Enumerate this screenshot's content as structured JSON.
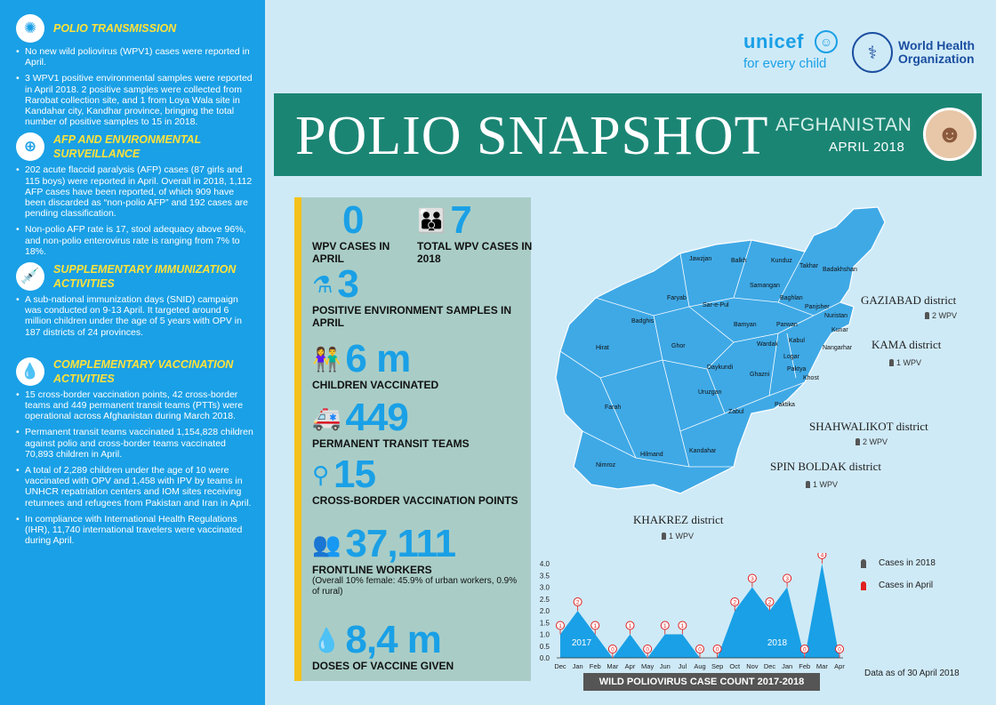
{
  "sidebar": {
    "sections": [
      {
        "title": "POLIO TRANSMISSION",
        "icon": "virus-icon",
        "bullets": [
          "No new wild poliovirus (WPV1) cases were reported in April.",
          "3 WPV1 positive environmental samples were reported in April 2018. 2 positive samples were collected from Rarobat collection site, and 1 from Loya Wala site in Kandahar city, Kandhar province, bringing the total number of positive samples to 15 in 2018."
        ]
      },
      {
        "title": "AFP AND ENVIRONMENTAL SURVEILLANCE",
        "icon": "surveillance-icon",
        "bullets": [
          "202 acute flaccid paralysis (AFP) cases (87 girls and 115 boys) were reported in April. Overall in 2018, 1,112 AFP cases have been reported, of which 909 have been discarded as “non-polio AFP” and 192 cases are pending classification.",
          "Non-polio AFP rate is 17, stool adequacy above 96%, and non-polio enterovirus rate is ranging from 7% to 18%."
        ]
      },
      {
        "title": "SUPPLEMENTARY IMMUNIZATION ACTIVITIES",
        "icon": "vaccine-drop-icon",
        "bullets": [
          "A sub-national immunization days (SNID) campaign was conducted on 9-13 April. It targeted around 6 million children under the age of 5 years with OPV in 187 districts of 24 provinces."
        ]
      },
      {
        "title": "COMPLEMENTARY VACCINATION ACTIVITIES",
        "icon": "drop-icon",
        "bullets": [
          "15 cross-border vaccination points, 42 cross-border teams and 449 permanent transit teams (PTTs) were operational across Afghanistan during March 2018.",
          "Permanent transit teams vaccinated 1,154,828 children against polio and cross-border teams vaccinated 70,893 children in April.",
          "A total of 2,289 children under the age of 10 were vaccinated with OPV and 1,458 with IPV by teams in UNHCR repatriation centers and IOM sites receiving returnees and refugees from Pakistan and Iran in April.",
          "In compliance with International Health Regulations (IHR), 11,740 international travelers were vaccinated during April."
        ]
      }
    ]
  },
  "logos": {
    "unicef_name": "unicef",
    "unicef_tagline": "for every child",
    "who_line1": "World Health",
    "who_line2": "Organization"
  },
  "banner": {
    "title": "POLIO SNAPSHOT",
    "country": "AFGHANISTAN",
    "month": "APRIL 2018"
  },
  "stats": {
    "wpv_april": {
      "num": "0",
      "label": "WPV CASES IN APRIL"
    },
    "wpv_total": {
      "num": "7",
      "label": "TOTAL WPV CASES IN 2018"
    },
    "env": {
      "num": "3",
      "label": "POSITIVE ENVIRONMENT SAMPLES IN APRIL"
    },
    "children": {
      "num": "6 m",
      "label": "CHILDREN VACCINATED"
    },
    "ptt": {
      "num": "449",
      "label": "PERMANENT TRANSIT TEAMS"
    },
    "cbv": {
      "num": "15",
      "label": "CROSS-BORDER VACCINATION POINTS"
    },
    "flw": {
      "num": "37,111",
      "label": "FRONTLINE WORKERS",
      "sub": "(Overall 10% female: 45.9% of urban workers, 0.9% of rural)"
    },
    "doses": {
      "num": "8,4 m",
      "label": "DOSES OF VACCINE GIVEN"
    }
  },
  "map": {
    "provinces": [
      "Jawzjan",
      "Balkh",
      "Kunduz",
      "Takhar",
      "Badakhshan",
      "Faryab",
      "Samangan",
      "Sar-e-Pul",
      "Baghlan",
      "Panjsher",
      "Nuristan",
      "Badghis",
      "Bamyan",
      "Parwan",
      "Kunar",
      "Kabul",
      "Wardak",
      "Nangarhar",
      "Hirat",
      "Ghor",
      "Logar",
      "Daykundi",
      "Ghazni",
      "Paktya",
      "Khost",
      "Uruzgan",
      "Paktika",
      "Farah",
      "Zabul",
      "Kandahar",
      "Hilmand",
      "Nimroz"
    ],
    "districts": [
      {
        "name": "GAZIABAD district",
        "cases": "2 WPV"
      },
      {
        "name": "KAMA district",
        "cases": "1 WPV"
      },
      {
        "name": "SHAHWALIKOT district",
        "cases": "2 WPV"
      },
      {
        "name": "SPIN BOLDAK district",
        "cases": "1 WPV"
      },
      {
        "name": "KHAKREZ district",
        "cases": "1 WPV"
      }
    ]
  },
  "chart_data": {
    "type": "area",
    "title": "WILD POLIOVIRUS CASE COUNT 2017-2018",
    "categories": [
      "Dec",
      "Jan",
      "Feb",
      "Mar",
      "Apr",
      "May",
      "Jun",
      "Jul",
      "Aug",
      "Sep",
      "Oct",
      "Nov",
      "Dec",
      "Jan",
      "Feb",
      "Mar",
      "Apr"
    ],
    "values": [
      1,
      2,
      1,
      0,
      1,
      0,
      1,
      1,
      0,
      0,
      2,
      3,
      2,
      3,
      0,
      4,
      0
    ],
    "year_labels": [
      "2017",
      "2018"
    ],
    "ylim": [
      0,
      4
    ],
    "yticks": [
      "4.0",
      "3.5",
      "3.0",
      "2.5",
      "2.0",
      "1.5",
      "1.0",
      "0.5",
      "0.0"
    ],
    "legend": [
      "Cases in 2018",
      "Cases in April"
    ],
    "colors": {
      "area": "#1aa0e6",
      "marker": "#e02020"
    }
  },
  "as_of": "Data as of 30 April 2018"
}
